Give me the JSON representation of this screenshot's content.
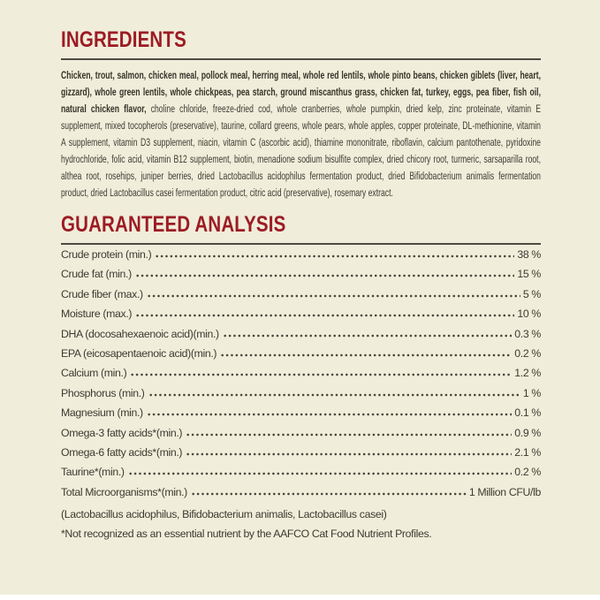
{
  "label": {
    "colors": {
      "background": "#f0edda",
      "heading_red": "#9c1b24",
      "body_text": "#3c3b31",
      "rule": "#4d4c42"
    },
    "ingredients": {
      "title": "INGREDIENTS",
      "main_ingredients": "Chicken, trout, salmon, chicken meal, pollock meal, herring meal, whole red lentils, whole pinto beans, chicken giblets (liver, heart, gizzard), whole green lentils, whole chickpeas, pea starch, ground miscanthus grass, chicken fat, turkey, eggs, pea fiber, fish oil, natural chicken flavor,",
      "secondary_ingredients": " choline chloride, freeze-dried cod, whole cranberries, whole pumpkin, dried kelp, zinc proteinate, vitamin E supplement, mixed tocopherols (preservative), taurine, collard greens, whole pears, whole apples, copper proteinate, DL-methionine, vitamin A supplement, vitamin D3 supplement, niacin, vitamin C (ascorbic acid), thiamine mononitrate, riboflavin, calcium pantothenate, pyridoxine hydrochloride, folic acid, vitamin B12 supplement, biotin, menadione sodium bisulfite complex, dried chicory root, turmeric, sarsaparilla root, althea root, rosehips, juniper berries, dried Lactobacillus acidophilus fermentation product, dried Bifidobacterium animalis fermentation product, dried Lactobacillus casei fermentation product, citric acid (preservative), rosemary extract."
    },
    "guaranteed_analysis": {
      "title": "GUARANTEED ANALYSIS",
      "rows": [
        {
          "name": "Crude protein (min.)",
          "value": "38 %"
        },
        {
          "name": "Crude fat (min.)",
          "value": "15 %"
        },
        {
          "name": "Crude fiber (max.)",
          "value": "5 %"
        },
        {
          "name": "Moisture (max.)",
          "value": "10 %"
        },
        {
          "name": "DHA (docosahexaenoic acid)(min.)",
          "value": "0.3 %"
        },
        {
          "name": "EPA (eicosapentaenoic acid)(min.)",
          "value": "0.2 %"
        },
        {
          "name": "Calcium (min.)",
          "value": "1.2 %"
        },
        {
          "name": "Phosphorus (min.)",
          "value": "1 %"
        },
        {
          "name": "Magnesium (min.)",
          "value": "0.1 %"
        },
        {
          "name": "Omega-3 fatty acids*(min.)",
          "value": "0.9 %"
        },
        {
          "name": "Omega-6 fatty acids*(min.)",
          "value": "2.1 %"
        },
        {
          "name": "Taurine*(min.)",
          "value": "0.2 %"
        },
        {
          "name": "Total Microorganisms*(min.)",
          "value": "1 Million CFU/lb"
        }
      ],
      "microorganisms_detail": "(Lactobacillus acidophilus, Bifidobacterium animalis, Lactobacillus casei)",
      "footnote": "*Not recognized as an essential nutrient by the AAFCO Cat Food Nutrient Profiles."
    }
  }
}
